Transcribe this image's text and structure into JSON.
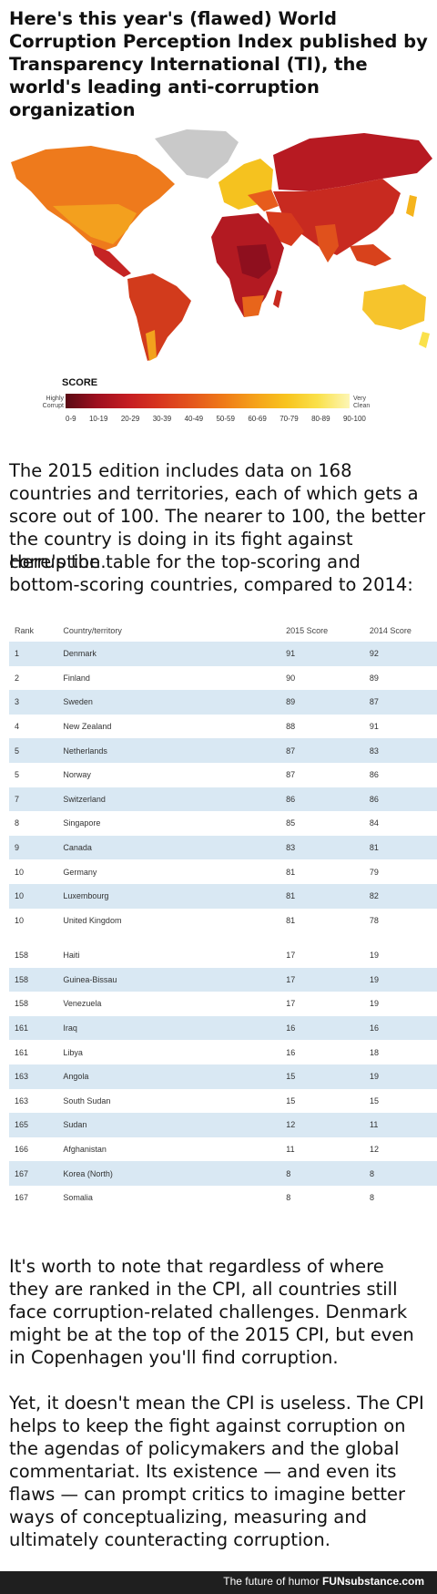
{
  "intro_title": "Here's this year's (flawed) World Corruption Perception Index published by Transparency International (TI), the world's leading anti-corruption organization",
  "legend": {
    "label": "SCORE",
    "low": "Highly Corrupt",
    "high": "Very Clean",
    "ticks": [
      "0-9",
      "10-19",
      "20-29",
      "30-39",
      "40-49",
      "50-59",
      "60-69",
      "70-79",
      "80-89",
      "90-100"
    ]
  },
  "para1": "The 2015 edition includes data on 168 countries and territories, each of which gets a score out of 100. The nearer to 100, the better the country is doing in its fight against corruption.",
  "para2": "Here's the table for the top-scoring and bottom-scoring countries, compared to 2014:",
  "table": {
    "headers": [
      "Rank",
      "Country/territory",
      "2015 Score",
      "2014 Score"
    ],
    "top_rows": [
      [
        "1",
        "Denmark",
        "91",
        "92"
      ],
      [
        "2",
        "Finland",
        "90",
        "89"
      ],
      [
        "3",
        "Sweden",
        "89",
        "87"
      ],
      [
        "4",
        "New Zealand",
        "88",
        "91"
      ],
      [
        "5",
        "Netherlands",
        "87",
        "83"
      ],
      [
        "5",
        "Norway",
        "87",
        "86"
      ],
      [
        "7",
        "Switzerland",
        "86",
        "86"
      ],
      [
        "8",
        "Singapore",
        "85",
        "84"
      ],
      [
        "9",
        "Canada",
        "83",
        "81"
      ],
      [
        "10",
        "Germany",
        "81",
        "79"
      ],
      [
        "10",
        "Luxembourg",
        "81",
        "82"
      ],
      [
        "10",
        "United Kingdom",
        "81",
        "78"
      ]
    ],
    "bottom_rows": [
      [
        "158",
        "Haiti",
        "17",
        "19"
      ],
      [
        "158",
        "Guinea-Bissau",
        "17",
        "19"
      ],
      [
        "158",
        "Venezuela",
        "17",
        "19"
      ],
      [
        "161",
        "Iraq",
        "16",
        "16"
      ],
      [
        "161",
        "Libya",
        "16",
        "18"
      ],
      [
        "163",
        "Angola",
        "15",
        "19"
      ],
      [
        "163",
        "South Sudan",
        "15",
        "15"
      ],
      [
        "165",
        "Sudan",
        "12",
        "11"
      ],
      [
        "166",
        "Afghanistan",
        "11",
        "12"
      ],
      [
        "167",
        "Korea (North)",
        "8",
        "8"
      ],
      [
        "167",
        "Somalia",
        "8",
        "8"
      ]
    ]
  },
  "para3": "It's worth to note that regardless of where they are ranked in the CPI, all countries still face corruption-related challenges. Denmark might be at the top of the 2015 CPI, but even in Copenhagen you'll find corruption.",
  "para4": "Yet, it doesn't mean the CPI is useless. The CPI helps to keep the fight against corruption on the agendas of policymakers and the global commentariat. Its existence — and even its flaws — can prompt critics to imagine better ways of conceptualizing, measuring and ultimately counteracting corruption.",
  "footer": {
    "text": "The future of humor",
    "brand": "FUNsubstance.com"
  }
}
